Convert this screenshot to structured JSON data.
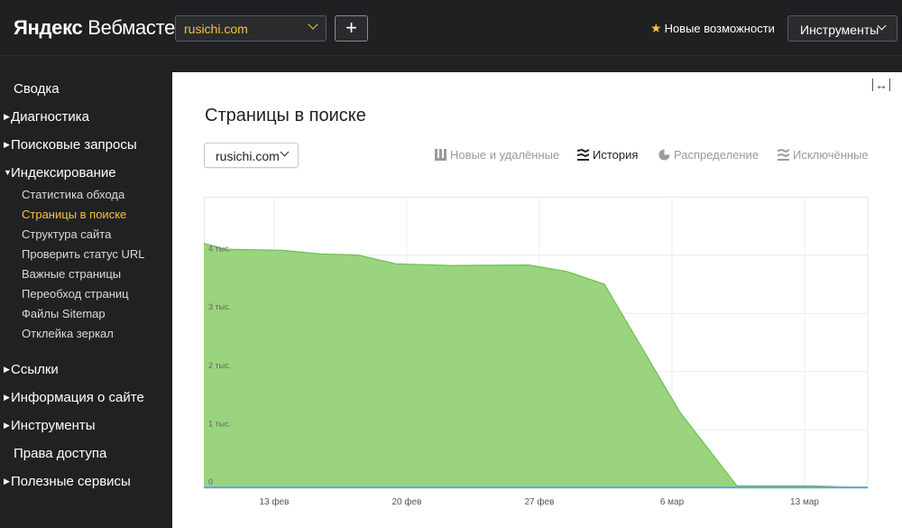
{
  "header": {
    "logo_brand": "Яндекс",
    "logo_product": "Вебмастер",
    "site_select": "rusichi.com",
    "add_label": "+",
    "features_label": "Новые возможности",
    "tools_label": "Инструменты"
  },
  "sidebar": {
    "items": [
      {
        "label": "Сводка",
        "expandable": false
      },
      {
        "label": "Диагностика",
        "expandable": true
      },
      {
        "label": "Поисковые запросы",
        "expandable": true
      },
      {
        "label": "Индексирование",
        "expandable": true,
        "expanded": true
      },
      {
        "label": "Ссылки",
        "expandable": true
      },
      {
        "label": "Информация о сайте",
        "expandable": true
      },
      {
        "label": "Инструменты",
        "expandable": true
      },
      {
        "label": "Права доступа",
        "expandable": false
      },
      {
        "label": "Полезные сервисы",
        "expandable": true
      }
    ],
    "subitems": [
      {
        "label": "Статистика обхода",
        "active": false
      },
      {
        "label": "Страницы в поиске",
        "active": true
      },
      {
        "label": "Структура сайта",
        "active": false
      },
      {
        "label": "Проверить статус URL",
        "active": false
      },
      {
        "label": "Важные страницы",
        "active": false
      },
      {
        "label": "Переобход страниц",
        "active": false
      },
      {
        "label": "Файлы Sitemap",
        "active": false
      },
      {
        "label": "Отклейка зеркал",
        "active": false
      }
    ]
  },
  "main": {
    "title": "Страницы в поиске",
    "site_select": "rusichi.com",
    "tabs": [
      {
        "label": "Новые и удалённые",
        "icon": "bars-icon",
        "active": false
      },
      {
        "label": "История",
        "icon": "stacked-lines-icon",
        "active": true
      },
      {
        "label": "Распределение",
        "icon": "pie-icon",
        "active": false
      },
      {
        "label": "Исключённые",
        "icon": "stacked-lines-icon",
        "active": false
      }
    ]
  },
  "chart_data": {
    "type": "area",
    "x_ticks": [
      "13 фев",
      "20 фев",
      "27 фев",
      "6 мар",
      "13 мар"
    ],
    "y_ticks": [
      "0",
      "1 тыс.",
      "2 тыс.",
      "3 тыс.",
      "4 тыс."
    ],
    "ylim": [
      0,
      5000
    ],
    "grid": true,
    "colors": {
      "area": "#9ad47f",
      "line": "#6cbf4f",
      "baseline": "#5aa9e6"
    },
    "series": [
      {
        "values": [
          {
            "x": "2017-02-09",
            "y": 4200
          },
          {
            "x": "2017-02-10",
            "y": 4100
          },
          {
            "x": "2017-02-13",
            "y": 4080
          },
          {
            "x": "2017-02-15",
            "y": 4020
          },
          {
            "x": "2017-02-17",
            "y": 4000
          },
          {
            "x": "2017-02-19",
            "y": 3850
          },
          {
            "x": "2017-02-22",
            "y": 3820
          },
          {
            "x": "2017-02-26",
            "y": 3830
          },
          {
            "x": "2017-02-28",
            "y": 3720
          },
          {
            "x": "2017-03-02",
            "y": 3500
          },
          {
            "x": "2017-03-06",
            "y": 1300
          },
          {
            "x": "2017-03-09",
            "y": 40
          },
          {
            "x": "2017-03-13",
            "y": 40
          },
          {
            "x": "2017-03-17",
            "y": 10
          }
        ]
      }
    ]
  }
}
